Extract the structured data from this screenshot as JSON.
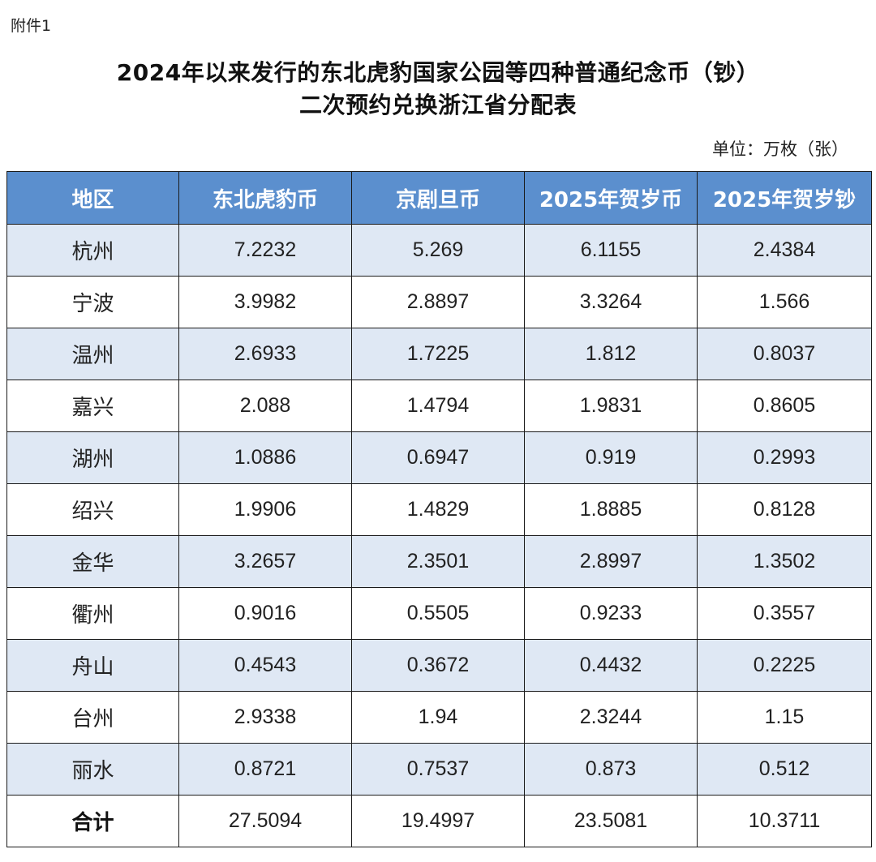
{
  "attachment_label": "附件1",
  "title_line1": "2024年以来发行的东北虎豹国家公园等四种普通纪念币（钞）",
  "title_line2": "二次预约兑换浙江省分配表",
  "unit_note": "单位：万枚（张）",
  "colors": {
    "header_bg": "#5b8fce",
    "shaded_row": "#dfe8f4",
    "border": "#1a1a1a"
  },
  "table": {
    "headers": [
      "地区",
      "东北虎豹币",
      "京剧旦币",
      "2025年贺岁币",
      "2025年贺岁钞"
    ],
    "rows": [
      {
        "region": "杭州",
        "v1": "7.2232",
        "v2": "5.269",
        "v3": "6.1155",
        "v4": "2.4384"
      },
      {
        "region": "宁波",
        "v1": "3.9982",
        "v2": "2.8897",
        "v3": "3.3264",
        "v4": "1.566"
      },
      {
        "region": "温州",
        "v1": "2.6933",
        "v2": "1.7225",
        "v3": "1.812",
        "v4": "0.8037"
      },
      {
        "region": "嘉兴",
        "v1": "2.088",
        "v2": "1.4794",
        "v3": "1.9831",
        "v4": "0.8605"
      },
      {
        "region": "湖州",
        "v1": "1.0886",
        "v2": "0.6947",
        "v3": "0.919",
        "v4": "0.2993"
      },
      {
        "region": "绍兴",
        "v1": "1.9906",
        "v2": "1.4829",
        "v3": "1.8885",
        "v4": "0.8128"
      },
      {
        "region": "金华",
        "v1": "3.2657",
        "v2": "2.3501",
        "v3": "2.8997",
        "v4": "1.3502"
      },
      {
        "region": "衢州",
        "v1": "0.9016",
        "v2": "0.5505",
        "v3": "0.9233",
        "v4": "0.3557"
      },
      {
        "region": "舟山",
        "v1": "0.4543",
        "v2": "0.3672",
        "v3": "0.4432",
        "v4": "0.2225"
      },
      {
        "region": "台州",
        "v1": "2.9338",
        "v2": "1.94",
        "v3": "2.3244",
        "v4": "1.15"
      },
      {
        "region": "丽水",
        "v1": "0.8721",
        "v2": "0.7537",
        "v3": "0.873",
        "v4": "0.512"
      }
    ],
    "total": {
      "region": "合计",
      "v1": "27.5094",
      "v2": "19.4997",
      "v3": "23.5081",
      "v4": "10.3711"
    }
  }
}
